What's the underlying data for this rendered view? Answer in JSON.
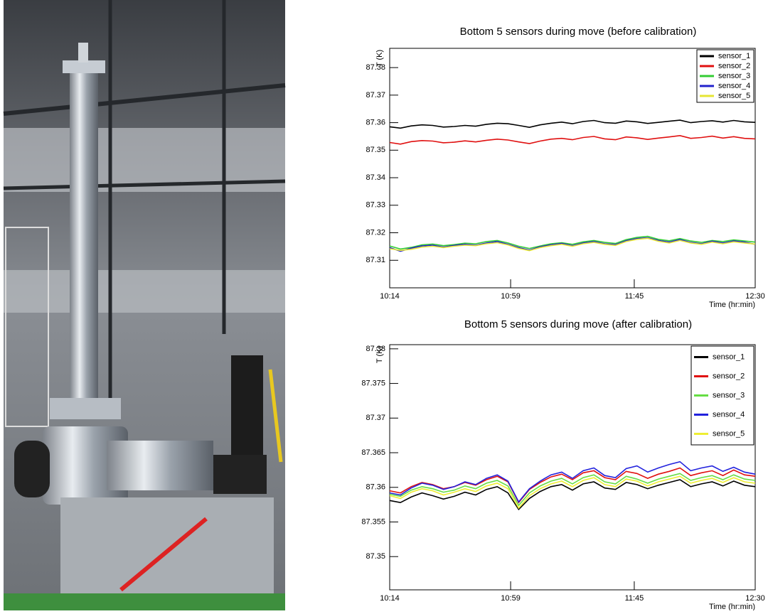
{
  "chart_data": [
    {
      "type": "line",
      "title": "Bottom 5 sensors during move (before calibration)",
      "x_label": "Time (hr:min)",
      "y_label": "T (K)",
      "x": [
        "10:14",
        "10:18",
        "10:22",
        "10:26",
        "10:30",
        "10:34",
        "10:38",
        "10:42",
        "10:46",
        "10:50",
        "10:54",
        "10:58",
        "11:02",
        "11:06",
        "11:10",
        "11:14",
        "11:18",
        "11:22",
        "11:26",
        "11:30",
        "11:34",
        "11:38",
        "11:42",
        "11:46",
        "11:50",
        "11:54",
        "11:58",
        "12:02",
        "12:06",
        "12:10",
        "12:14",
        "12:18",
        "12:22",
        "12:26",
        "12:30"
      ],
      "xlim": [
        "10:14",
        "12:30"
      ],
      "xticks": [
        "10:14",
        "10:59",
        "11:45",
        "12:30"
      ],
      "ylim": [
        87.3,
        87.387
      ],
      "yticks": [
        87.31,
        87.32,
        87.33,
        87.34,
        87.35,
        87.36,
        87.37,
        87.38
      ],
      "legend": "upper right",
      "series": [
        {
          "name": "sensor_1",
          "color": "#000000",
          "values": [
            87.3585,
            87.358,
            87.3588,
            87.3592,
            87.359,
            87.3584,
            87.3586,
            87.359,
            87.3587,
            87.3594,
            87.3598,
            87.3596,
            87.359,
            87.3583,
            87.3592,
            87.3598,
            87.3602,
            87.3596,
            87.3604,
            87.3608,
            87.36,
            87.3598,
            87.3606,
            87.3603,
            87.3597,
            87.3601,
            87.3605,
            87.3609,
            87.36,
            87.3604,
            87.3607,
            87.3602,
            87.3608,
            87.3603,
            87.3601
          ]
        },
        {
          "name": "sensor_2",
          "color": "#e01010",
          "values": [
            87.3528,
            87.3522,
            87.3531,
            87.3535,
            87.3533,
            87.3527,
            87.3529,
            87.3534,
            87.353,
            87.3536,
            87.354,
            87.3537,
            87.353,
            87.3524,
            87.3533,
            87.354,
            87.3543,
            87.3538,
            87.3546,
            87.355,
            87.3541,
            87.3538,
            87.3548,
            87.3545,
            87.3539,
            87.3544,
            87.3548,
            87.3553,
            87.3543,
            87.3546,
            87.3551,
            87.3544,
            87.3549,
            87.3543,
            87.3541
          ]
        },
        {
          "name": "sensor_3",
          "color": "#33cc33",
          "values": [
            87.3152,
            87.3141,
            87.3147,
            87.3156,
            87.3159,
            87.3153,
            87.3157,
            87.3162,
            87.316,
            87.3168,
            87.3172,
            87.3163,
            87.3151,
            87.3143,
            87.3152,
            87.316,
            87.3164,
            87.3158,
            87.3167,
            87.3172,
            87.3165,
            87.3161,
            87.3175,
            87.3183,
            87.3187,
            87.3176,
            87.3171,
            87.3179,
            87.317,
            87.3165,
            87.3172,
            87.3168,
            87.3174,
            87.317,
            87.3166
          ]
        },
        {
          "name": "sensor_4",
          "color": "#2222cc",
          "values": [
            87.3146,
            87.3133,
            87.3144,
            87.3152,
            87.3155,
            87.3148,
            87.3154,
            87.3158,
            87.3155,
            87.3163,
            87.3168,
            87.3158,
            87.3146,
            87.3137,
            87.3149,
            87.3156,
            87.3161,
            87.3153,
            87.3163,
            87.3168,
            87.316,
            87.3157,
            87.3171,
            87.3179,
            87.3182,
            87.3172,
            87.3166,
            87.3175,
            87.3165,
            87.316,
            87.3169,
            87.3163,
            87.317,
            87.3166,
            87.3158
          ]
        },
        {
          "name": "sensor_5",
          "color": "#e6e633",
          "values": [
            87.3142,
            87.3136,
            87.314,
            87.3148,
            87.3151,
            87.3146,
            87.3151,
            87.3155,
            87.3153,
            87.316,
            87.3164,
            87.3156,
            87.3143,
            87.3135,
            87.3146,
            87.3153,
            87.3158,
            87.3151,
            87.316,
            87.3165,
            87.3158,
            87.3154,
            87.3168,
            87.3176,
            87.318,
            87.3169,
            87.3163,
            87.3172,
            87.3163,
            87.3158,
            87.3166,
            87.316,
            87.3167,
            87.3163,
            87.3159
          ]
        }
      ]
    },
    {
      "type": "line",
      "title": "Bottom 5 sensors during move (after calibration)",
      "x_label": "Time (hr:min)",
      "y_label": "T (K)",
      "x": [
        "10:14",
        "10:18",
        "10:22",
        "10:26",
        "10:30",
        "10:34",
        "10:38",
        "10:42",
        "10:46",
        "10:50",
        "10:54",
        "10:58",
        "11:02",
        "11:06",
        "11:10",
        "11:14",
        "11:18",
        "11:22",
        "11:26",
        "11:30",
        "11:34",
        "11:38",
        "11:42",
        "11:46",
        "11:50",
        "11:54",
        "11:58",
        "12:02",
        "12:06",
        "12:10",
        "12:14",
        "12:18",
        "12:22",
        "12:26",
        "12:30"
      ],
      "xlim": [
        "10:14",
        "12:30"
      ],
      "xticks": [
        "10:14",
        "10:59",
        "11:45",
        "12:30"
      ],
      "ylim": [
        87.3452,
        87.3806
      ],
      "yticks": [
        87.35,
        87.355,
        87.36,
        87.365,
        87.37,
        87.375,
        87.38
      ],
      "legend": "upper right",
      "series": [
        {
          "name": "sensor_1",
          "color": "#000000",
          "values": [
            87.3581,
            87.3578,
            87.3586,
            87.3592,
            87.3588,
            87.3583,
            87.3587,
            87.3593,
            87.3589,
            87.3597,
            87.3601,
            87.3592,
            87.3568,
            87.3584,
            87.3594,
            87.3601,
            87.3604,
            87.3596,
            87.3605,
            87.3608,
            87.3599,
            87.3597,
            87.3607,
            87.3604,
            87.3598,
            87.3603,
            87.3607,
            87.3611,
            87.3601,
            87.3605,
            87.3608,
            87.3602,
            87.3609,
            87.3603,
            87.3601
          ]
        },
        {
          "name": "sensor_2",
          "color": "#e01010",
          "values": [
            87.3595,
            87.3592,
            87.3601,
            87.3607,
            87.3604,
            87.3598,
            87.3601,
            87.3607,
            87.3603,
            87.3611,
            87.3616,
            87.3608,
            87.3578,
            87.3597,
            87.3607,
            87.3615,
            87.3619,
            87.3611,
            87.3621,
            87.3624,
            87.3614,
            87.3611,
            87.3623,
            87.362,
            87.3613,
            87.3619,
            87.3623,
            87.3628,
            87.3617,
            87.3621,
            87.3624,
            87.3617,
            87.3625,
            87.3618,
            87.3616
          ]
        },
        {
          "name": "sensor_3",
          "color": "#66dd44",
          "values": [
            87.359,
            87.3587,
            87.3596,
            87.3601,
            87.3598,
            87.3593,
            87.3596,
            87.3602,
            87.3598,
            87.3606,
            87.361,
            87.3602,
            87.3574,
            87.3592,
            87.3602,
            87.3609,
            87.3613,
            87.3605,
            87.3614,
            87.3618,
            87.3608,
            87.3605,
            87.3616,
            87.3612,
            87.3606,
            87.3612,
            87.3616,
            87.362,
            87.361,
            87.3614,
            87.3617,
            87.3611,
            87.3618,
            87.3612,
            87.361
          ]
        },
        {
          "name": "sensor_4",
          "color": "#2222dd",
          "values": [
            87.3592,
            87.3589,
            87.3599,
            87.3606,
            87.3603,
            87.3597,
            87.3601,
            87.3608,
            87.3604,
            87.3613,
            87.3618,
            87.3609,
            87.3579,
            87.3598,
            87.3609,
            87.3618,
            87.3622,
            87.3613,
            87.3624,
            87.3628,
            87.3617,
            87.3614,
            87.3627,
            87.3631,
            87.3622,
            87.3628,
            87.3633,
            87.3637,
            87.3624,
            87.3628,
            87.3631,
            87.3623,
            87.3629,
            87.3622,
            87.3619
          ]
        },
        {
          "name": "sensor_5",
          "color": "#eeee33",
          "values": [
            87.3588,
            87.3584,
            87.3593,
            87.3598,
            87.3595,
            87.3589,
            87.3593,
            87.3598,
            87.3594,
            87.3602,
            87.3606,
            87.3598,
            87.357,
            87.3588,
            87.3598,
            87.3605,
            87.3609,
            87.3601,
            87.361,
            87.3614,
            87.3604,
            87.3601,
            87.3612,
            87.3609,
            87.3602,
            87.3608,
            87.3612,
            87.3616,
            87.3606,
            87.361,
            87.3613,
            87.3607,
            87.3614,
            87.3608,
            87.3606
          ]
        }
      ]
    }
  ]
}
